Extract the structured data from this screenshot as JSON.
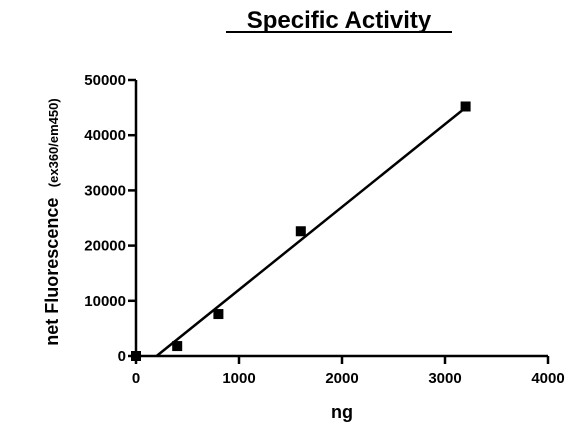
{
  "chart_data": {
    "type": "scatter",
    "title": "Specific Activity",
    "xlabel": "ng",
    "ylabel": "net Fluorescence",
    "ylabel_unit": "(ex360/em450)",
    "xlim": [
      0,
      4000
    ],
    "ylim": [
      0,
      50000
    ],
    "x_ticks": [
      0,
      1000,
      2000,
      3000,
      4000
    ],
    "y_ticks": [
      0,
      10000,
      20000,
      30000,
      40000,
      50000
    ],
    "x_tick_labels": [
      "0",
      "1000",
      "2000",
      "3000",
      "4000"
    ],
    "y_tick_labels": [
      "0",
      "10000",
      "20000",
      "30000",
      "40000",
      "50000"
    ],
    "grid": false,
    "marker": "square",
    "series": [
      {
        "x": [
          0,
          400,
          800,
          1600,
          3200
        ],
        "y": [
          0,
          1800,
          7600,
          22600,
          45200
        ],
        "fit_line": {
          "x": [
            200,
            3200
          ],
          "y": [
            0,
            45000
          ]
        }
      }
    ]
  }
}
